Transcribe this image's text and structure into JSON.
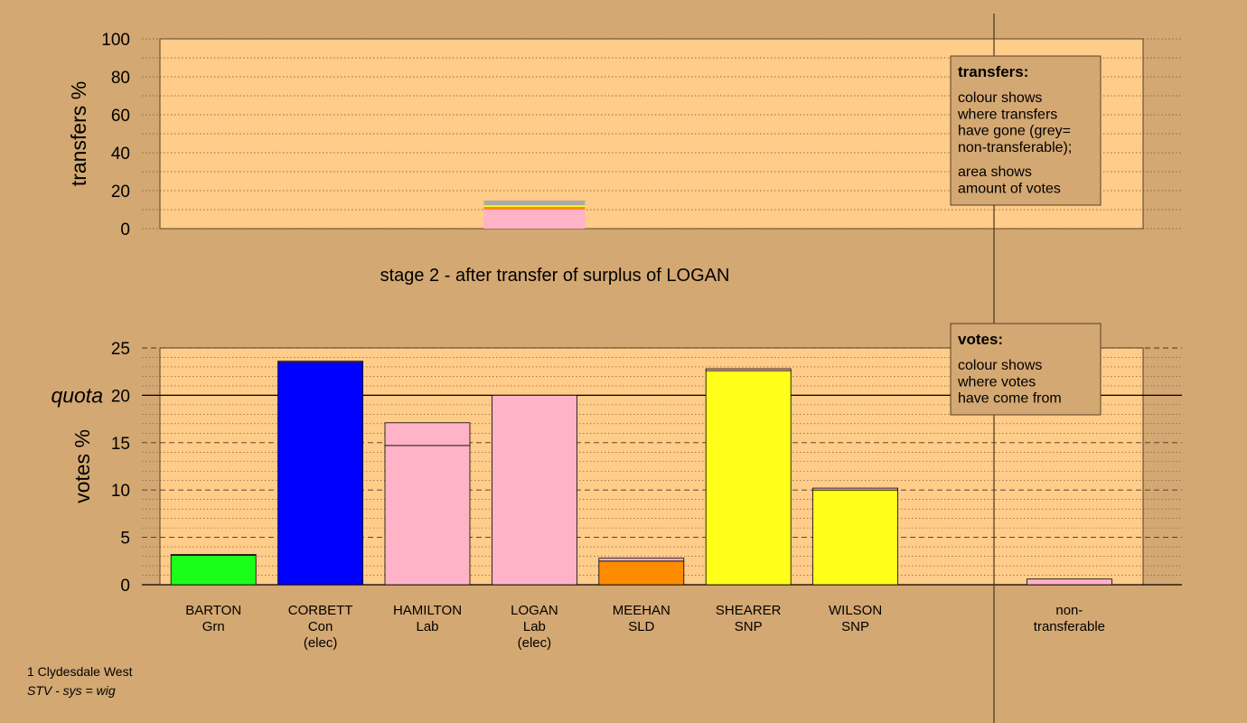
{
  "chart_data": [
    {
      "type": "bar",
      "panel": "transfers",
      "ylabel": "transfers %",
      "ylim": [
        0,
        100
      ],
      "yticks": [
        0,
        20,
        40,
        60,
        80,
        100
      ],
      "categories": [
        "LOGAN"
      ],
      "series": [
        {
          "color": "#ffb3c6",
          "values": [
            10
          ]
        },
        {
          "color": "#ff8c00",
          "values": [
            1.5
          ]
        },
        {
          "color": "#ffff1a",
          "values": [
            0.8
          ]
        },
        {
          "color": "#aaaaaa",
          "values": [
            2.5
          ]
        }
      ],
      "legend": {
        "title": "transfers:",
        "lines1": [
          "colour shows",
          "where transfers",
          "have gone (grey=",
          "non-transferable);"
        ],
        "lines2": [
          "area shows",
          "amount of votes"
        ]
      }
    },
    {
      "type": "bar",
      "panel": "votes",
      "ylabel": "votes %",
      "ylim": [
        0,
        25
      ],
      "yticks": [
        0,
        5,
        10,
        15,
        20,
        25
      ],
      "quota": 20,
      "quota_label": "quota",
      "categories": [
        {
          "name": "BARTON",
          "party": "Grn",
          "note": ""
        },
        {
          "name": "CORBETT",
          "party": "Con",
          "note": "(elec)"
        },
        {
          "name": "HAMILTON",
          "party": "Lab",
          "note": ""
        },
        {
          "name": "LOGAN",
          "party": "Lab",
          "note": "(elec)"
        },
        {
          "name": "MEEHAN",
          "party": "SLD",
          "note": ""
        },
        {
          "name": "SHEARER",
          "party": "SNP",
          "note": ""
        },
        {
          "name": "WILSON",
          "party": "SNP",
          "note": ""
        },
        {
          "name": "non-",
          "party": "transferable",
          "note": ""
        }
      ],
      "bars": [
        {
          "segments": [
            {
              "value": 3.1,
              "color": "#1aff1a"
            },
            {
              "value": 0.1,
              "color": "#ffb3c6"
            }
          ]
        },
        {
          "segments": [
            {
              "value": 23.5,
              "color": "#0000ff"
            },
            {
              "value": 0.1,
              "color": "#ffb3c6"
            }
          ]
        },
        {
          "segments": [
            {
              "value": 14.7,
              "color": "#ffb3c6"
            },
            {
              "value": 2.4,
              "color": "#ffb3c6"
            }
          ]
        },
        {
          "segments": [
            {
              "value": 20.0,
              "color": "#ffb3c6"
            }
          ]
        },
        {
          "segments": [
            {
              "value": 2.5,
              "color": "#ff8c00"
            },
            {
              "value": 0.3,
              "color": "#ffb3c6"
            }
          ]
        },
        {
          "segments": [
            {
              "value": 22.6,
              "color": "#ffff1a"
            },
            {
              "value": 0.2,
              "color": "#ffb3c6"
            }
          ]
        },
        {
          "segments": [
            {
              "value": 10.0,
              "color": "#ffff1a"
            },
            {
              "value": 0.2,
              "color": "#ffb3c6"
            }
          ]
        },
        {
          "segments": [
            {
              "value": 0.6,
              "color": "#ffb3c6"
            }
          ]
        }
      ],
      "legend": {
        "title": "votes:",
        "lines1": [
          "colour shows",
          "where votes",
          "have come from"
        ]
      }
    }
  ],
  "stage_title": "stage 2 - after transfer of surplus of LOGAN",
  "footer": {
    "line1": "1 Clydesdale West",
    "line2": "STV - sys = wig"
  }
}
